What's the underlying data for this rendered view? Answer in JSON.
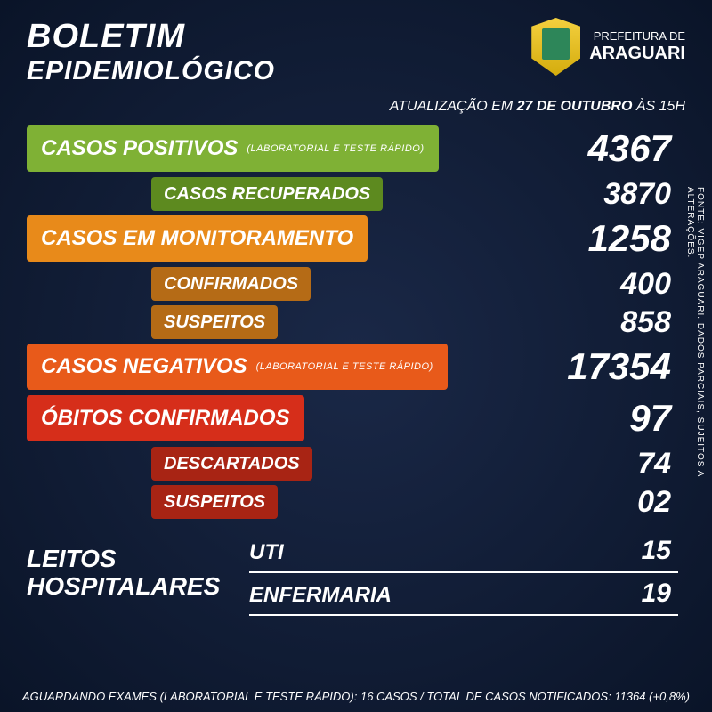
{
  "header": {
    "title_line1": "BOLETIM",
    "title_line2": "EPIDEMIOLÓGICO",
    "prefeitura_line1": "PREFEITURA DE",
    "prefeitura_line2": "ARAGUARI",
    "update_prefix": "ATUALIZAÇÃO EM ",
    "update_date": "27 DE OUTUBRO",
    "update_suffix": " ÀS 15H"
  },
  "colors": {
    "green_main": "#7fb135",
    "green_sub": "#5d8a1f",
    "orange_main": "#e88a1a",
    "orange_sub": "#b56b16",
    "red_orange": "#e85a1a",
    "red_main": "#d62e1a",
    "red_sub": "#a82414"
  },
  "rows": {
    "positivos": {
      "label": "CASOS POSITIVOS",
      "note": "(LABORATORIAL E TESTE RÁPIDO)",
      "value": "4367"
    },
    "recuperados": {
      "label": "CASOS RECUPERADOS",
      "value": "3870"
    },
    "monitoramento": {
      "label": "CASOS EM MONITORAMENTO",
      "value": "1258"
    },
    "confirmados": {
      "label": "CONFIRMADOS",
      "value": "400"
    },
    "suspeitos_mon": {
      "label": "SUSPEITOS",
      "value": "858"
    },
    "negativos": {
      "label": "CASOS NEGATIVOS",
      "note": "(LABORATORIAL E TESTE RÁPIDO)",
      "value": "17354"
    },
    "obitos": {
      "label": "ÓBITOS CONFIRMADOS",
      "value": "97"
    },
    "descartados": {
      "label": "DESCARTADOS",
      "value": "74"
    },
    "suspeitos_ob": {
      "label": "SUSPEITOS",
      "value": "02"
    }
  },
  "hospital": {
    "title_line1": "LEITOS",
    "title_line2": "HOSPITALARES",
    "uti": {
      "label": "UTI",
      "value": "15"
    },
    "enfermaria": {
      "label": "ENFERMARIA",
      "value": "19"
    }
  },
  "footer": {
    "text": "AGUARDANDO EXAMES (LABORATORIAL E TESTE RÁPIDO): 16 CASOS   /   TOTAL DE CASOS NOTIFICADOS: 11364 (+0,8%)"
  },
  "side_note": "FONTE: VIGEP ARAGUARI. DADOS PARCIAIS, SUJEITOS A ALTERAÇÕES."
}
